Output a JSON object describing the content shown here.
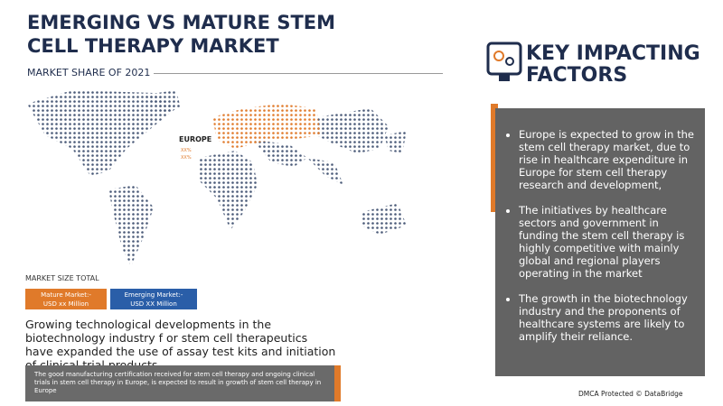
{
  "header": {
    "title": "EMERGING VS MATURE STEM CELL THERAPY MARKET",
    "subtitle": "MARKET SHARE OF 2021"
  },
  "map": {
    "region_label": "EUROPE",
    "values": [
      "XX%",
      "XX%"
    ]
  },
  "market_size": {
    "label": "MARKET SIZE TOTAL",
    "mature": {
      "name": "Mature Market:-",
      "value": "USD xx Million"
    },
    "emerging": {
      "name": "Emerging Market:-",
      "value": "USD XX Million"
    }
  },
  "body_text": "Growing technological developments in the biotechnology industry f or stem cell therapeutics have expanded the use of assay test kits and initiation of clinical trial products",
  "footer_note": "The good manufacturing certification received for stem cell therapy and ongoing clinical trials in stem cell therapy in Europe, is expected to result in growth of stem cell therapy in Europe",
  "key_factors": {
    "title": "KEY IMPACTING FACTORS",
    "items": [
      "Europe is expected to grow in the stem cell therapy market, due to rise in healthcare expenditure in Europe for stem cell therapy research and development,",
      "The initiatives by healthcare sectors and government in funding the stem cell therapy is highly competitive with mainly global and regional players operating in the market",
      "The growth in the biotechnology industry and the proponents of healthcare systems are likely to amplify their reliance."
    ]
  },
  "credit": "DMCA Protected © DataBridge"
}
